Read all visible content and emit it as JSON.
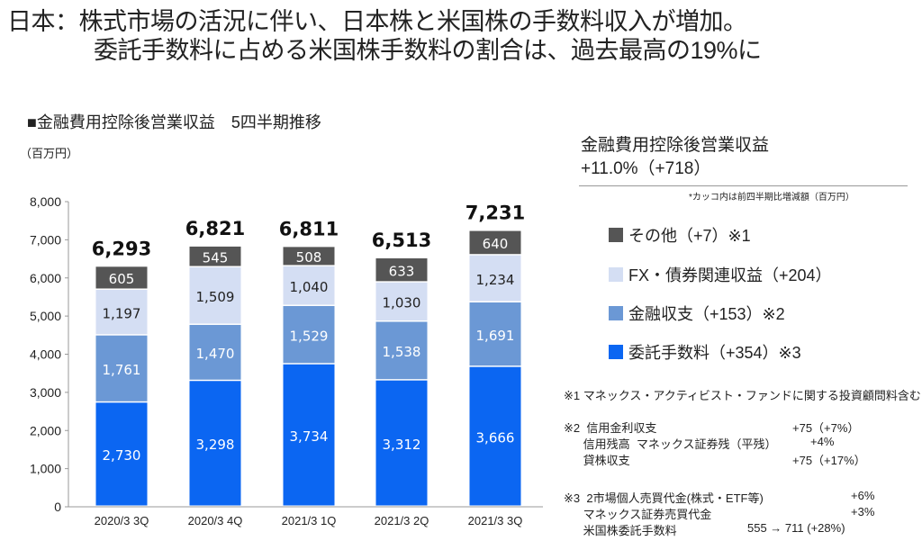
{
  "header": {
    "title_line1": "日本：株式市場の活況に伴い、日本株と米国株の手数料収入が増加。",
    "title_line2": "委託手数料に占める米国株手数料の割合は、過去最高の19%に"
  },
  "summary": {
    "label": "金融費用控除後営業収益",
    "value": "+11.0%（+718）",
    "note": "*カッコ内は前四半期比増減額（百万円）"
  },
  "legend": [
    {
      "label": "その他（+7）※1",
      "color": "#555555"
    },
    {
      "label": "FX・債券関連収益（+204）",
      "color": "#d4def3"
    },
    {
      "label": "金融収支（+153）※2",
      "color": "#6b98d5"
    },
    {
      "label": "委託手数料（+354）※3",
      "color": "#0b66f2"
    }
  ],
  "notes": {
    "n1": "※1  マネックス・アクティビスト・ファンドに関する投資顧問料含む",
    "n2": [
      {
        "k": "※2  信用金利収支",
        "v": "+75（+7%）"
      },
      {
        "k": "      信用残高  マネックス証券残（平残）",
        "v": "+4%"
      },
      {
        "k": "      貸株収支",
        "v": "+75（+17%）"
      }
    ],
    "n3": [
      {
        "k": "※3  2市場個人売買代金(株式・ETF等)",
        "v": "+6%"
      },
      {
        "k": "      マネックス証券売買代金",
        "v": "+3%"
      },
      {
        "k": "      米国株委託手数料",
        "v": "555 → 711 (+28%)"
      }
    ]
  },
  "chart_data": {
    "type": "bar",
    "stacked": true,
    "title": "■金融費用控除後営業収益　5四半期推移",
    "ylabel": "（百万円）",
    "xlabel": "",
    "ylim": [
      0,
      8000
    ],
    "yticks": [
      0,
      1000,
      2000,
      3000,
      4000,
      5000,
      6000,
      7000,
      8000
    ],
    "ytick_labels": [
      "0",
      "1,000",
      "2,000",
      "3,000",
      "4,000",
      "5,000",
      "6,000",
      "7,000",
      "8,000"
    ],
    "categories": [
      "2020/3 3Q",
      "2020/3 4Q",
      "2021/3 1Q",
      "2021/3 2Q",
      "2021/3 3Q"
    ],
    "series": [
      {
        "name": "委託手数料",
        "color": "#0b66f2",
        "label_color": "#ffffff",
        "values": [
          2730,
          3298,
          3734,
          3312,
          3666
        ],
        "labels": [
          "2,730",
          "3,298",
          "3,734",
          "3,312",
          "3,666"
        ]
      },
      {
        "name": "金融収支",
        "color": "#6b98d5",
        "label_color": "#ffffff",
        "values": [
          1761,
          1470,
          1529,
          1538,
          1691
        ],
        "labels": [
          "1,761",
          "1,470",
          "1,529",
          "1,538",
          "1,691"
        ]
      },
      {
        "name": "FX・債券関連収益",
        "color": "#d4def3",
        "label_color": "#222222",
        "values": [
          1197,
          1509,
          1040,
          1030,
          1234
        ],
        "labels": [
          "1,197",
          "1,509",
          "1,040",
          "1,030",
          "1,234"
        ]
      },
      {
        "name": "その他",
        "color": "#555555",
        "label_color": "#ffffff",
        "values": [
          605,
          545,
          508,
          633,
          640
        ],
        "labels": [
          "605",
          "545",
          "508",
          "633",
          "640"
        ]
      }
    ],
    "totals": [
      6293,
      6821,
      6811,
      6513,
      7231
    ],
    "total_labels": [
      "6,293",
      "6,821",
      "6,811",
      "6,513",
      "7,231"
    ],
    "grid": false,
    "legend_position": "right"
  }
}
